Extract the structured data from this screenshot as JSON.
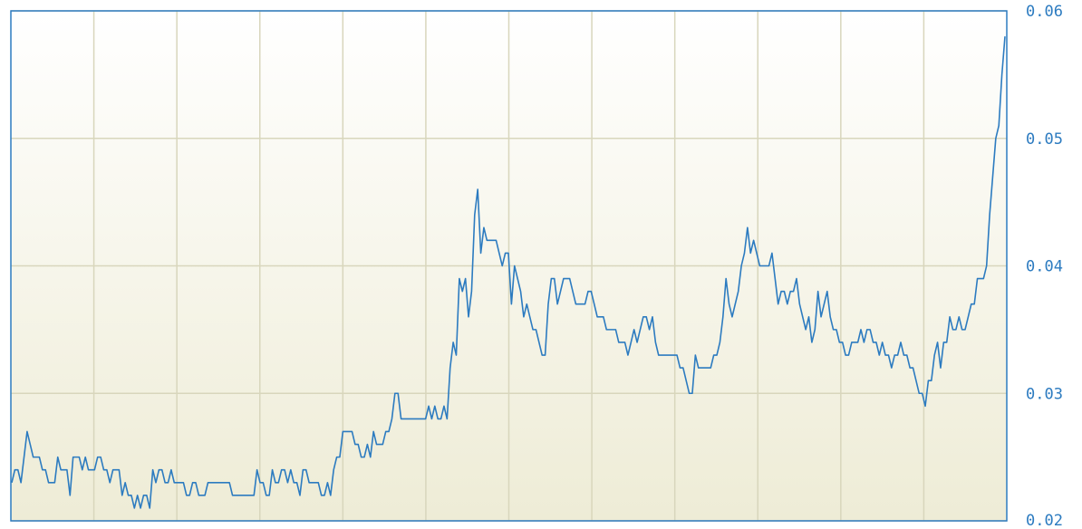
{
  "chart_data": {
    "type": "line",
    "title": "",
    "xlabel": "",
    "ylabel": "",
    "ylim": [
      0.02,
      0.06
    ],
    "y_ticks": [
      "0.02",
      "0.03",
      "0.04",
      "0.05",
      "0.06"
    ],
    "y_axis_side": "right",
    "grid": true,
    "vertical_gridlines": 12,
    "legend": "none",
    "series": [
      {
        "values": [
          0.023,
          0.024,
          0.024,
          0.023,
          0.025,
          0.027,
          0.026,
          0.025,
          0.025,
          0.025,
          0.024,
          0.024,
          0.023,
          0.023,
          0.023,
          0.025,
          0.024,
          0.024,
          0.024,
          0.022,
          0.025,
          0.025,
          0.025,
          0.024,
          0.025,
          0.024,
          0.024,
          0.024,
          0.025,
          0.025,
          0.024,
          0.024,
          0.023,
          0.024,
          0.024,
          0.024,
          0.022,
          0.023,
          0.022,
          0.022,
          0.021,
          0.022,
          0.021,
          0.022,
          0.022,
          0.021,
          0.024,
          0.023,
          0.024,
          0.024,
          0.023,
          0.023,
          0.024,
          0.023,
          0.023,
          0.023,
          0.023,
          0.022,
          0.022,
          0.023,
          0.023,
          0.022,
          0.022,
          0.022,
          0.023,
          0.023,
          0.023,
          0.023,
          0.023,
          0.023,
          0.023,
          0.023,
          0.022,
          0.022,
          0.022,
          0.022,
          0.022,
          0.022,
          0.022,
          0.022,
          0.024,
          0.023,
          0.023,
          0.022,
          0.022,
          0.024,
          0.023,
          0.023,
          0.024,
          0.024,
          0.023,
          0.024,
          0.023,
          0.023,
          0.022,
          0.024,
          0.024,
          0.023,
          0.023,
          0.023,
          0.023,
          0.022,
          0.022,
          0.023,
          0.022,
          0.024,
          0.025,
          0.025,
          0.027,
          0.027,
          0.027,
          0.027,
          0.026,
          0.026,
          0.025,
          0.025,
          0.026,
          0.025,
          0.027,
          0.026,
          0.026,
          0.026,
          0.027,
          0.027,
          0.028,
          0.03,
          0.03,
          0.028,
          0.028,
          0.028,
          0.028,
          0.028,
          0.028,
          0.028,
          0.028,
          0.028,
          0.029,
          0.028,
          0.029,
          0.028,
          0.028,
          0.029,
          0.028,
          0.032,
          0.034,
          0.033,
          0.039,
          0.038,
          0.039,
          0.036,
          0.038,
          0.044,
          0.046,
          0.041,
          0.043,
          0.042,
          0.042,
          0.042,
          0.042,
          0.041,
          0.04,
          0.041,
          0.041,
          0.037,
          0.04,
          0.039,
          0.038,
          0.036,
          0.037,
          0.036,
          0.035,
          0.035,
          0.034,
          0.033,
          0.033,
          0.037,
          0.039,
          0.039,
          0.037,
          0.038,
          0.039,
          0.039,
          0.039,
          0.038,
          0.037,
          0.037,
          0.037,
          0.037,
          0.038,
          0.038,
          0.037,
          0.036,
          0.036,
          0.036,
          0.035,
          0.035,
          0.035,
          0.035,
          0.034,
          0.034,
          0.034,
          0.033,
          0.034,
          0.035,
          0.034,
          0.035,
          0.036,
          0.036,
          0.035,
          0.036,
          0.034,
          0.033,
          0.033,
          0.033,
          0.033,
          0.033,
          0.033,
          0.033,
          0.032,
          0.032,
          0.031,
          0.03,
          0.03,
          0.033,
          0.032,
          0.032,
          0.032,
          0.032,
          0.032,
          0.033,
          0.033,
          0.034,
          0.036,
          0.039,
          0.037,
          0.036,
          0.037,
          0.038,
          0.04,
          0.041,
          0.043,
          0.041,
          0.042,
          0.041,
          0.04,
          0.04,
          0.04,
          0.04,
          0.041,
          0.039,
          0.037,
          0.038,
          0.038,
          0.037,
          0.038,
          0.038,
          0.039,
          0.037,
          0.036,
          0.035,
          0.036,
          0.034,
          0.035,
          0.038,
          0.036,
          0.037,
          0.038,
          0.036,
          0.035,
          0.035,
          0.034,
          0.034,
          0.033,
          0.033,
          0.034,
          0.034,
          0.034,
          0.035,
          0.034,
          0.035,
          0.035,
          0.034,
          0.034,
          0.033,
          0.034,
          0.033,
          0.033,
          0.032,
          0.033,
          0.033,
          0.034,
          0.033,
          0.033,
          0.032,
          0.032,
          0.031,
          0.03,
          0.03,
          0.029,
          0.031,
          0.031,
          0.033,
          0.034,
          0.032,
          0.034,
          0.034,
          0.036,
          0.035,
          0.035,
          0.036,
          0.035,
          0.035,
          0.036,
          0.037,
          0.037,
          0.039,
          0.039,
          0.039,
          0.04,
          0.044,
          0.047,
          0.05,
          0.051,
          0.055,
          0.058
        ]
      }
    ]
  }
}
